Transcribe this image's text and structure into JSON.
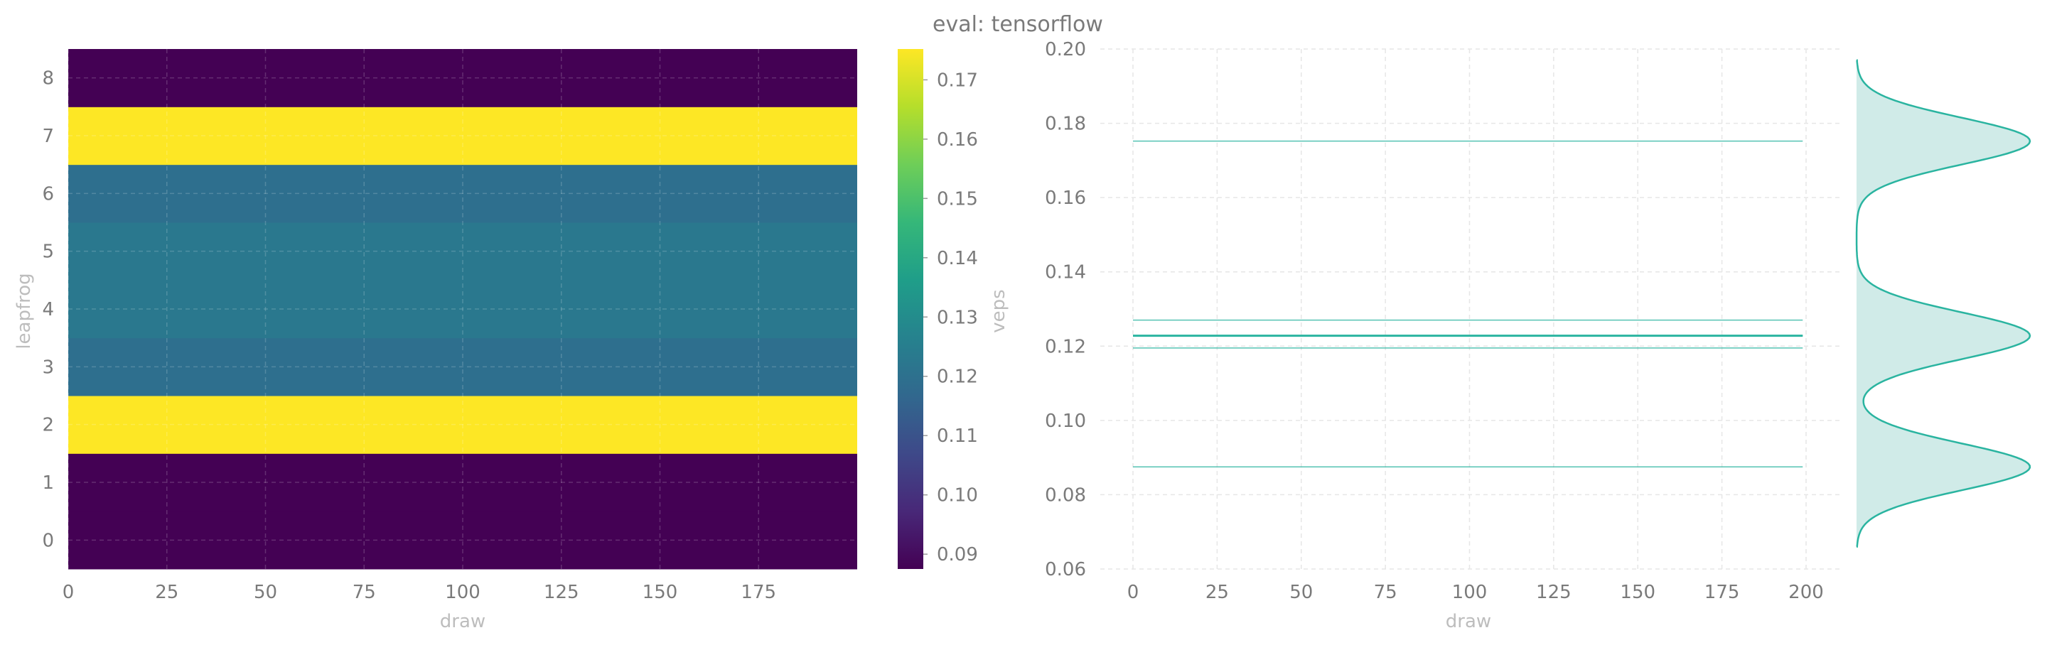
{
  "title": "eval: tensorflow",
  "colors": {
    "accent": "#2ab4a0",
    "fill": "#d0ebe8",
    "viridis": [
      "#440154",
      "#482878",
      "#3e4989",
      "#31688e",
      "#26828e",
      "#1f9e89",
      "#35b779",
      "#6ece58",
      "#b5de2b",
      "#fde725"
    ]
  },
  "chart_data": [
    {
      "type": "heatmap",
      "xlabel": "draw",
      "ylabel": "leapfrog",
      "x_ticks": [
        "0",
        "25",
        "50",
        "75",
        "100",
        "125",
        "150",
        "175"
      ],
      "xlim": [
        0,
        200
      ],
      "y_ticks": [
        "0",
        "1",
        "2",
        "3",
        "4",
        "5",
        "6",
        "7",
        "8"
      ],
      "rows": [
        {
          "leapfrog": 0,
          "veps": 0.0875
        },
        {
          "leapfrog": 1,
          "veps": 0.0875
        },
        {
          "leapfrog": 2,
          "veps": 0.1752
        },
        {
          "leapfrog": 3,
          "veps": 0.1195
        },
        {
          "leapfrog": 4,
          "veps": 0.1228
        },
        {
          "leapfrog": 5,
          "veps": 0.1228
        },
        {
          "leapfrog": 6,
          "veps": 0.1195
        },
        {
          "leapfrog": 7,
          "veps": 0.1752
        },
        {
          "leapfrog": 8,
          "veps": 0.0875
        }
      ],
      "colorbar": {
        "label": "veps",
        "range": [
          0.0875,
          0.1752
        ],
        "ticks": [
          "0.09",
          "0.10",
          "0.11",
          "0.12",
          "0.13",
          "0.14",
          "0.15",
          "0.16",
          "0.17"
        ]
      }
    },
    {
      "type": "line",
      "xlabel": "draw",
      "ylabel": "",
      "x_ticks": [
        "0",
        "25",
        "50",
        "75",
        "100",
        "125",
        "150",
        "175",
        "200"
      ],
      "xlim": [
        0,
        200
      ],
      "ylim": [
        0.06,
        0.2
      ],
      "y_ticks": [
        "0.06",
        "0.08",
        "0.10",
        "0.12",
        "0.14",
        "0.16",
        "0.18",
        "0.20"
      ],
      "grid": true,
      "series_values": [
        0.1752,
        0.127,
        0.1228,
        0.1195,
        0.0875
      ]
    },
    {
      "type": "area",
      "orientation": "vertical-density",
      "ylim": [
        0.06,
        0.2
      ],
      "peaks": [
        0.0875,
        0.1228,
        0.1752
      ]
    }
  ]
}
